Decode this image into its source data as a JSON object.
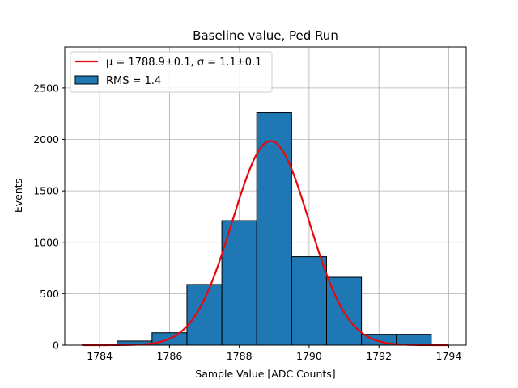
{
  "chart_data": {
    "type": "bar",
    "title": "Baseline value, Ped Run",
    "xlabel": "Sample Value [ADC Counts]",
    "ylabel": "Events",
    "xlim": [
      1783,
      1794.5
    ],
    "ylim": [
      0,
      2900
    ],
    "grid": true,
    "legend_position": "top-left",
    "xticks": [
      1784,
      1786,
      1788,
      1790,
      1792,
      1794
    ],
    "yticks": [
      0,
      500,
      1000,
      1500,
      2000,
      2500
    ],
    "bin_width": 1.0,
    "bins": [
      {
        "left": 1783.5,
        "value": 5
      },
      {
        "left": 1784.5,
        "value": 40
      },
      {
        "left": 1785.5,
        "value": 120
      },
      {
        "left": 1786.5,
        "value": 590
      },
      {
        "left": 1787.5,
        "value": 1210
      },
      {
        "left": 1788.5,
        "value": 2260
      },
      {
        "left": 1789.5,
        "value": 860
      },
      {
        "left": 1790.5,
        "value": 660
      },
      {
        "left": 1791.5,
        "value": 105
      },
      {
        "left": 1792.5,
        "value": 105
      }
    ],
    "fit": {
      "type": "gaussian",
      "mu": 1788.9,
      "sigma": 1.1,
      "amplitude": 1985,
      "x_range": [
        1783.5,
        1794
      ]
    },
    "legend": [
      {
        "label": "μ = 1788.9±0.1, σ = 1.1±0.1",
        "kind": "line",
        "color": "#e8080f"
      },
      {
        "label": "RMS = 1.4",
        "kind": "patch",
        "color": "#1f77b4"
      }
    ],
    "colors": {
      "bar": "#1f77b4",
      "bar_edge": "#000000",
      "fit": "#e8080f",
      "grid": "#b0b0b0"
    }
  }
}
